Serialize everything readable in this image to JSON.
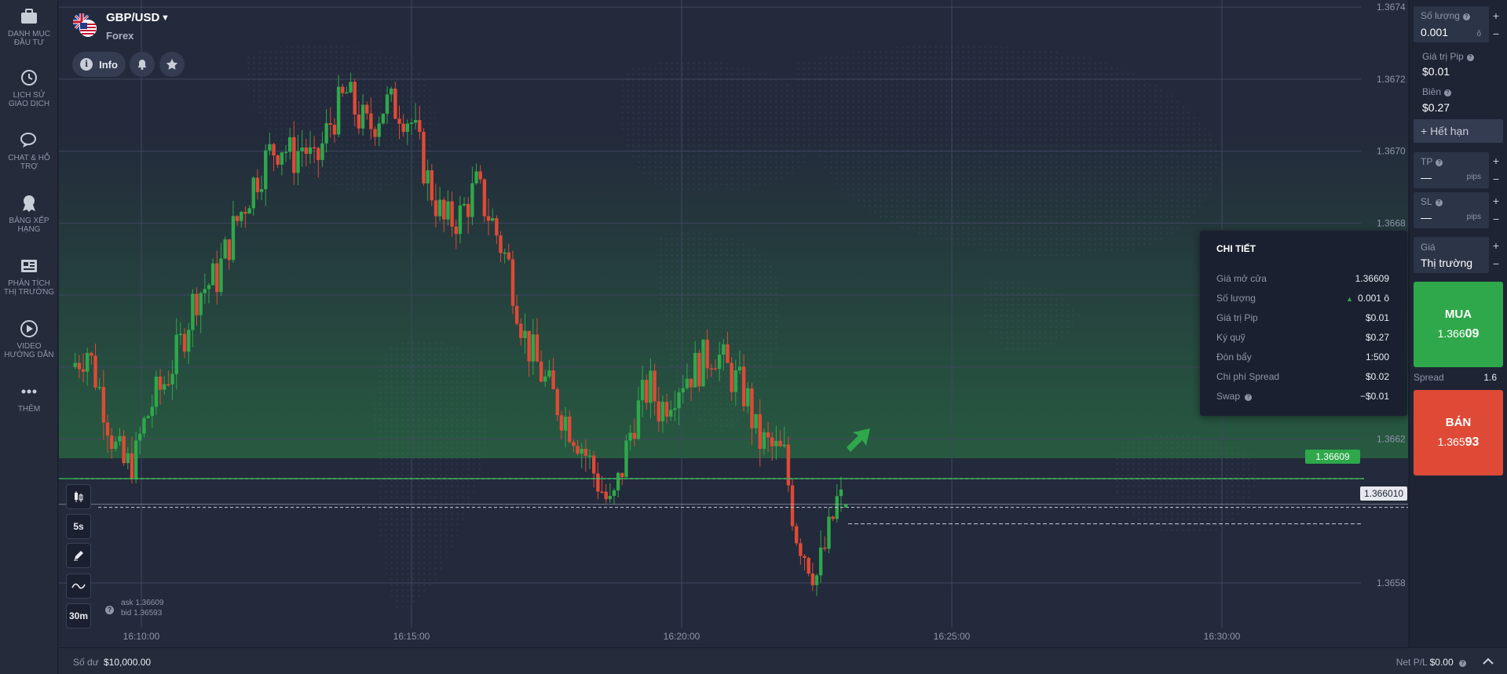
{
  "sidebar": {
    "items": [
      {
        "label": "DANH MỤC ĐẦU TƯ",
        "icon": "briefcase-icon"
      },
      {
        "label": "LỊCH SỬ GIAO DỊCH",
        "icon": "history-icon"
      },
      {
        "label": "CHAT & HỖ TRỢ",
        "icon": "chat-icon"
      },
      {
        "label": "BẢNG XẾP HẠNG",
        "icon": "award-icon"
      },
      {
        "label": "PHÂN TÍCH THỊ TRƯỜNG",
        "icon": "news-icon"
      },
      {
        "label": "VIDEO HƯỚNG DẪN",
        "icon": "play-icon"
      },
      {
        "label": "THÊM",
        "icon": "more-dots-icon"
      }
    ]
  },
  "instrument": {
    "name": "GBP/USD",
    "type": "Forex",
    "info_label": "Info"
  },
  "tools": {
    "timeframe": "5s",
    "chart_period": "30m"
  },
  "ask_bid": {
    "ask": "ask 1.36609",
    "bid": "bid 1.36593"
  },
  "price_tags": {
    "open_price": "1.36609",
    "current_price": "1.366010"
  },
  "details": {
    "title": "CHI TIẾT",
    "rows": [
      {
        "label": "Giá mở cửa",
        "value": "1.36609"
      },
      {
        "label": "Số lượng",
        "value": "0.001 ô"
      },
      {
        "label": "Giá trị Pip",
        "value": "$0.01"
      },
      {
        "label": "Ký quỹ",
        "value": "$0.27"
      },
      {
        "label": "Đòn bẩy",
        "value": "1:500"
      },
      {
        "label": "Chi phí Spread",
        "value": "$0.02"
      },
      {
        "label": "Swap",
        "value": "−$0.01"
      }
    ]
  },
  "panel": {
    "quantity_label": "Số lượng",
    "quantity_value": "0.001",
    "quantity_unit": "ô",
    "pip_value_label": "Giá trị Pip",
    "pip_value": "$0.01",
    "margin_label": "Biên",
    "margin_value": "$0.27",
    "expire_label": "+ Hết hạn",
    "tp_label": "TP",
    "tp_value": "—",
    "tp_unit": "pips",
    "sl_label": "SL",
    "sl_value": "—",
    "sl_unit": "pips",
    "price_label": "Giá",
    "price_value": "Thị trường",
    "buy_label": "MUA",
    "buy_price_main": "1.366",
    "buy_price_big": "09",
    "spread_label": "Spread",
    "spread_value": "1.6",
    "sell_label": "BÁN",
    "sell_price_main": "1.365",
    "sell_price_big": "93"
  },
  "bottombar": {
    "balance_label": "Số dư",
    "balance_value": "$10,000.00",
    "netpl_label": "Net P/L",
    "netpl_value": "$0.00"
  },
  "colors": {
    "up": "#2ea84a",
    "down": "#de4a36",
    "background": "#232a3b"
  },
  "chart_data": {
    "type": "candlestick",
    "x_ticks": [
      "16:10:00",
      "16:15:00",
      "16:20:00",
      "16:25:00",
      "16:30:00"
    ],
    "y_ticks": [
      "1.3674",
      "1.3672",
      "1.3670",
      "1.3668",
      "1.3662",
      "1.3658"
    ],
    "ylim": [
      1.36568,
      1.36742
    ],
    "x_start_minutes": 0,
    "x_tick_minutes": [
      0,
      5,
      10,
      15,
      20
    ],
    "open_price": 1.36609,
    "current_price": 1.36601,
    "close_path": [
      [
        -1.3,
        1.3664
      ],
      [
        -1.0,
        1.36645
      ],
      [
        -0.7,
        1.3663
      ],
      [
        -0.5,
        1.36618
      ],
      [
        -0.3,
        1.36612
      ],
      [
        -0.1,
        1.36615
      ],
      [
        0.0,
        1.36622
      ],
      [
        0.2,
        1.3663
      ],
      [
        0.4,
        1.36635
      ],
      [
        0.7,
        1.36645
      ],
      [
        1.0,
        1.3666
      ],
      [
        1.4,
        1.36665
      ],
      [
        1.7,
        1.36678
      ],
      [
        1.9,
        1.36685
      ],
      [
        2.1,
        1.36692
      ],
      [
        2.4,
        1.367
      ],
      [
        2.6,
        1.36702
      ],
      [
        2.8,
        1.36698
      ],
      [
        3.0,
        1.36702
      ],
      [
        3.2,
        1.36695
      ],
      [
        3.5,
        1.36708
      ],
      [
        3.8,
        1.36716
      ],
      [
        4.0,
        1.3671
      ],
      [
        4.2,
        1.36706
      ],
      [
        4.5,
        1.36713
      ],
      [
        4.8,
        1.36712
      ],
      [
        5.0,
        1.36708
      ],
      [
        5.3,
        1.36692
      ],
      [
        5.6,
        1.3668
      ],
      [
        5.9,
        1.36682
      ],
      [
        6.2,
        1.3669
      ],
      [
        6.5,
        1.3668
      ],
      [
        6.8,
        1.36668
      ],
      [
        7.1,
        1.36648
      ],
      [
        7.5,
        1.36635
      ],
      [
        7.8,
        1.36627
      ],
      [
        8.1,
        1.3662
      ],
      [
        8.4,
        1.3661
      ],
      [
        8.7,
        1.366
      ],
      [
        8.9,
        1.36612
      ],
      [
        9.1,
        1.36625
      ],
      [
        9.4,
        1.36635
      ],
      [
        9.6,
        1.36628
      ],
      [
        9.8,
        1.36633
      ],
      [
        10.0,
        1.36637
      ],
      [
        10.3,
        1.3664
      ],
      [
        10.6,
        1.36645
      ],
      [
        10.9,
        1.36638
      ],
      [
        11.2,
        1.36632
      ],
      [
        11.4,
        1.3662
      ],
      [
        11.6,
        1.36618
      ],
      [
        11.9,
        1.36615
      ],
      [
        12.1,
        1.36595
      ],
      [
        12.3,
        1.36588
      ],
      [
        12.5,
        1.36582
      ],
      [
        12.7,
        1.36592
      ],
      [
        12.9,
        1.36604
      ],
      [
        13.0,
        1.36601
      ]
    ]
  }
}
